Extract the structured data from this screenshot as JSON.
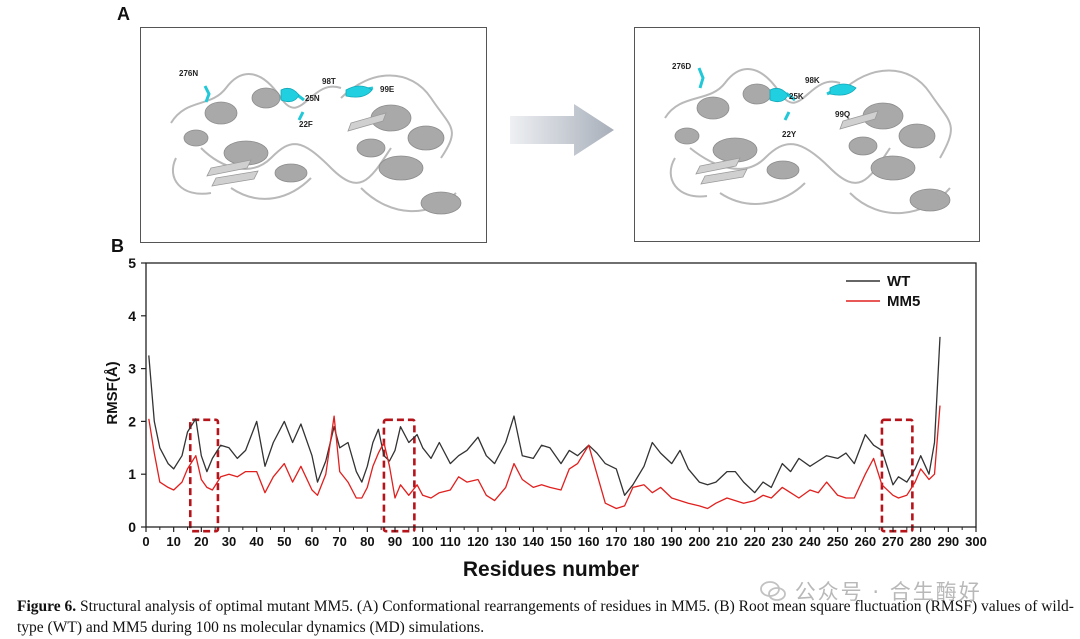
{
  "panel_a": {
    "letter": "A",
    "left_structure": {
      "labels": [
        "276N",
        "25N",
        "22F",
        "98T",
        "99E"
      ]
    },
    "right_structure": {
      "labels": [
        "276D",
        "25K",
        "22Y",
        "98K",
        "99Q"
      ]
    }
  },
  "panel_b": {
    "letter": "B"
  },
  "chart_data": {
    "type": "line",
    "xlabel": "Residues number",
    "ylabel": "RMSF(Å)",
    "xlim": [
      0,
      300
    ],
    "ylim": [
      0,
      5
    ],
    "x_ticks": [
      0,
      10,
      20,
      30,
      40,
      50,
      60,
      70,
      80,
      90,
      100,
      110,
      120,
      130,
      140,
      150,
      160,
      170,
      180,
      190,
      200,
      210,
      220,
      230,
      240,
      250,
      260,
      270,
      280,
      290,
      300
    ],
    "y_ticks": [
      0,
      1,
      2,
      3,
      4,
      5
    ],
    "legend_position": "top-right",
    "highlight_regions": [
      [
        16,
        26
      ],
      [
        86,
        97
      ],
      [
        266,
        277
      ]
    ],
    "series": [
      {
        "name": "WT",
        "color": "#333333",
        "x": [
          1,
          3,
          5,
          8,
          10,
          13,
          15,
          18,
          20,
          22,
          24,
          27,
          30,
          33,
          36,
          40,
          43,
          46,
          50,
          53,
          56,
          60,
          62,
          65,
          68,
          70,
          73,
          76,
          78,
          80,
          82,
          84,
          86,
          88,
          90,
          92,
          95,
          98,
          100,
          103,
          106,
          110,
          113,
          116,
          120,
          123,
          126,
          130,
          133,
          136,
          140,
          143,
          146,
          150,
          153,
          156,
          160,
          163,
          166,
          170,
          173,
          176,
          180,
          183,
          186,
          190,
          193,
          196,
          200,
          203,
          206,
          210,
          213,
          216,
          220,
          223,
          226,
          230,
          233,
          236,
          240,
          243,
          246,
          250,
          253,
          256,
          260,
          263,
          266,
          270,
          272,
          275,
          278,
          280,
          283,
          285,
          287
        ],
        "values": [
          3.25,
          2.0,
          1.5,
          1.2,
          1.1,
          1.35,
          1.8,
          2.05,
          1.35,
          1.05,
          1.3,
          1.55,
          1.5,
          1.3,
          1.45,
          2.0,
          1.15,
          1.6,
          2.0,
          1.6,
          1.95,
          1.35,
          0.85,
          1.25,
          1.9,
          1.5,
          1.6,
          1.05,
          0.85,
          1.15,
          1.6,
          1.85,
          1.35,
          1.25,
          1.45,
          1.9,
          1.6,
          1.75,
          1.5,
          1.3,
          1.6,
          1.2,
          1.35,
          1.45,
          1.7,
          1.35,
          1.2,
          1.6,
          2.1,
          1.35,
          1.3,
          1.55,
          1.5,
          1.2,
          1.45,
          1.35,
          1.55,
          1.4,
          1.2,
          1.1,
          0.6,
          0.8,
          1.15,
          1.6,
          1.4,
          1.2,
          1.45,
          1.1,
          0.85,
          0.8,
          0.85,
          1.05,
          1.05,
          0.85,
          0.65,
          0.85,
          0.75,
          1.2,
          1.05,
          1.3,
          1.15,
          1.25,
          1.35,
          1.3,
          1.4,
          1.2,
          1.75,
          1.55,
          1.45,
          0.8,
          0.95,
          0.85,
          1.1,
          1.35,
          1.0,
          1.6,
          3.6
        ]
      },
      {
        "name": "MM5",
        "color": "#e0201e",
        "x": [
          1,
          3,
          5,
          8,
          10,
          13,
          15,
          18,
          20,
          22,
          24,
          27,
          30,
          33,
          36,
          40,
          43,
          46,
          50,
          53,
          56,
          60,
          62,
          65,
          68,
          70,
          73,
          76,
          78,
          80,
          82,
          84,
          86,
          88,
          90,
          92,
          95,
          98,
          100,
          103,
          106,
          110,
          113,
          116,
          120,
          123,
          126,
          130,
          133,
          136,
          140,
          143,
          146,
          150,
          153,
          156,
          160,
          163,
          166,
          170,
          173,
          176,
          180,
          183,
          186,
          190,
          193,
          196,
          200,
          203,
          206,
          210,
          213,
          216,
          220,
          223,
          226,
          230,
          233,
          236,
          240,
          243,
          246,
          250,
          253,
          256,
          260,
          263,
          266,
          270,
          272,
          275,
          278,
          280,
          283,
          285,
          287
        ],
        "values": [
          2.05,
          1.4,
          0.85,
          0.75,
          0.7,
          0.85,
          1.1,
          1.35,
          0.9,
          0.75,
          0.7,
          0.95,
          1.0,
          0.95,
          1.05,
          1.05,
          0.65,
          0.95,
          1.2,
          0.85,
          1.15,
          0.7,
          0.6,
          1.0,
          2.1,
          1.05,
          0.85,
          0.55,
          0.55,
          0.75,
          1.15,
          1.4,
          1.6,
          1.15,
          0.55,
          0.8,
          0.6,
          0.8,
          0.6,
          0.55,
          0.65,
          0.7,
          0.95,
          0.85,
          0.9,
          0.6,
          0.5,
          0.75,
          1.2,
          0.9,
          0.75,
          0.8,
          0.75,
          0.7,
          1.1,
          1.2,
          1.55,
          1.0,
          0.45,
          0.35,
          0.4,
          0.75,
          0.8,
          0.65,
          0.75,
          0.55,
          0.5,
          0.45,
          0.4,
          0.35,
          0.45,
          0.55,
          0.5,
          0.45,
          0.5,
          0.6,
          0.55,
          0.75,
          0.65,
          0.55,
          0.7,
          0.65,
          0.85,
          0.6,
          0.55,
          0.55,
          1.0,
          1.3,
          0.8,
          0.6,
          0.55,
          0.6,
          0.85,
          1.1,
          0.9,
          1.0,
          2.3
        ]
      }
    ]
  },
  "caption": {
    "label": "Figure 6.",
    "text": " Structural analysis of optimal mutant MM5. (A) Conformational rearrangements of residues in MM5. (B) Root mean square fluctuation (RMSF) values of wild-type (WT) and MM5 during 100 ns molecular dynamics (MD) simulations."
  },
  "watermark": "公众号 · 合生酶好",
  "icons": [
    "arrow-right-icon",
    "wechat-icon"
  ]
}
